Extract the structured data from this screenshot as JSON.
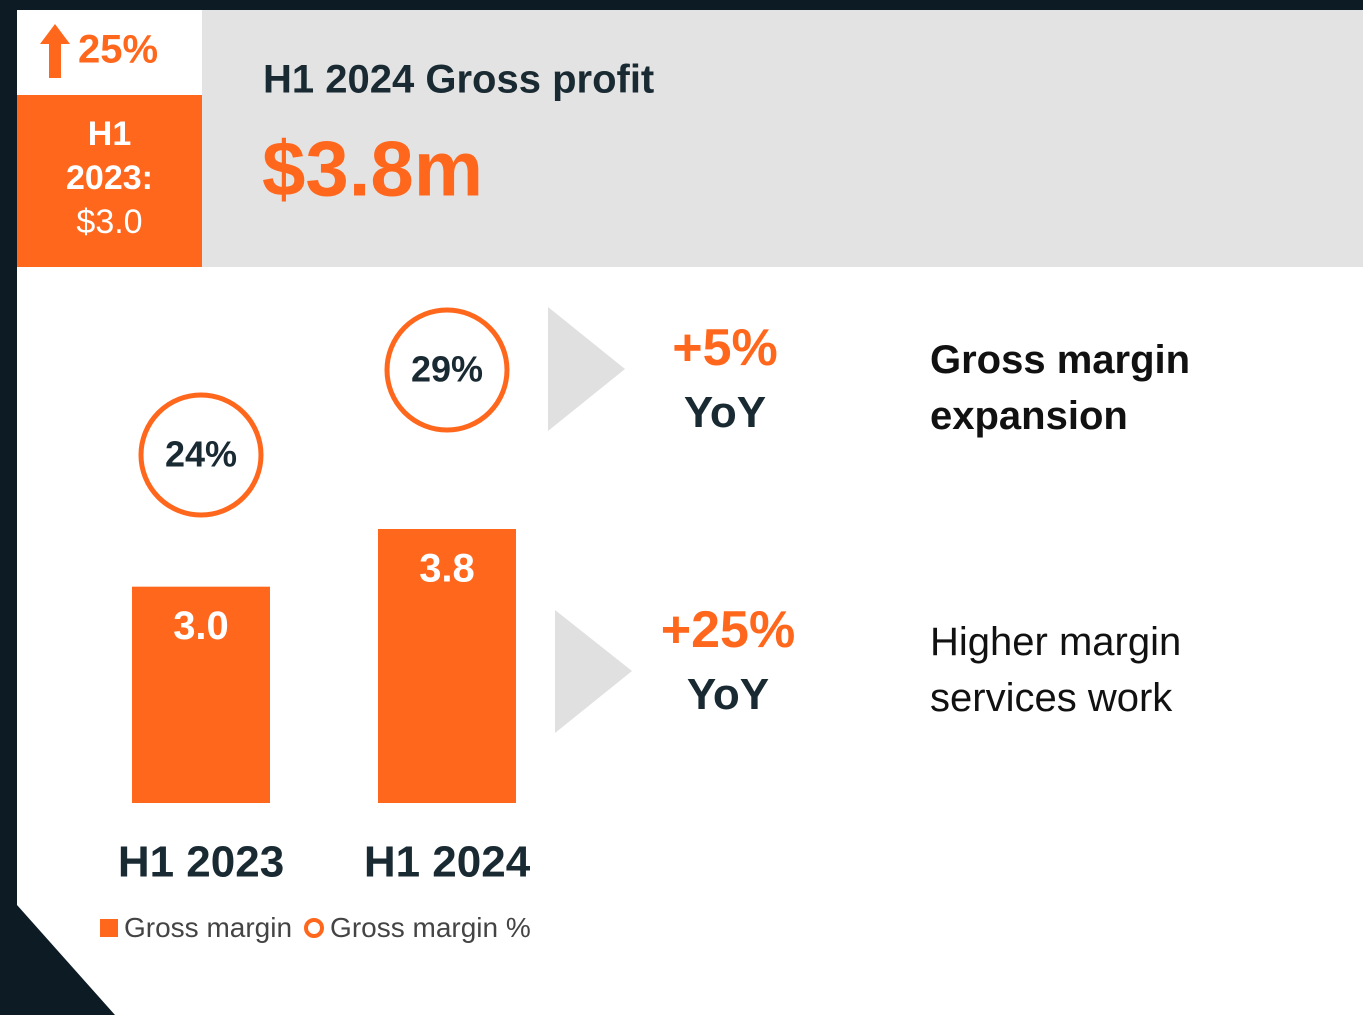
{
  "header": {
    "badge_change": "25%",
    "badge_label": "H1 2023:",
    "badge_value": "$3.0",
    "title": "H1 2024 Gross profit",
    "value": "$3.8m"
  },
  "chart_data": {
    "type": "bar",
    "categories": [
      "H1 2023",
      "H1 2024"
    ],
    "series": [
      {
        "name": "Gross margin",
        "color": "#ff671d",
        "values": [
          3.0,
          3.8
        ],
        "value_labels": [
          "3.0",
          "3.8"
        ]
      },
      {
        "name": "Gross margin %",
        "color": "#ff671d",
        "values": [
          24,
          29
        ],
        "value_labels": [
          "24%",
          "29%"
        ]
      }
    ]
  },
  "callouts": [
    {
      "change": "+5%",
      "unit": "YoY",
      "text": "Gross margin expansion"
    },
    {
      "change": "+25%",
      "unit": "YoY",
      "text": "Higher margin services work"
    }
  ]
}
